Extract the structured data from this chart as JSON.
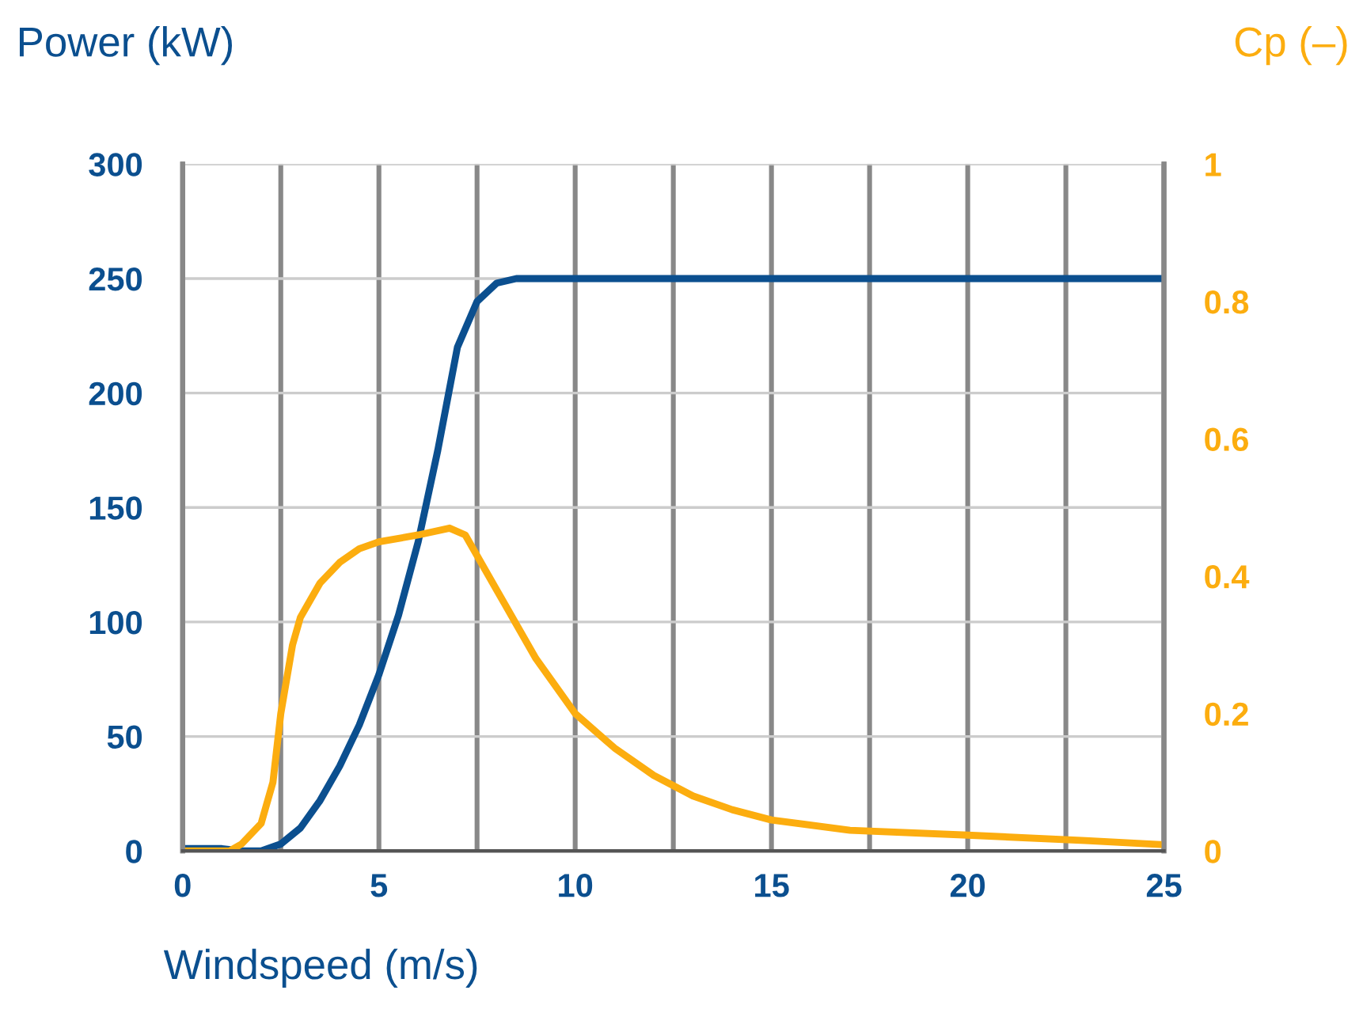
{
  "chart_data": {
    "type": "line",
    "xlabel": "Windspeed (m/s)",
    "ylabel": "Power (kW)",
    "y2label": "Cp (–)",
    "xlim": [
      0,
      25
    ],
    "xticks": [
      0,
      {
        "value": 2.5,
        "label": null
      },
      5,
      {
        "value": 7.5,
        "label": null
      },
      10,
      {
        "value": 12.5,
        "label": null
      },
      15,
      {
        "value": 17.5,
        "label": null
      },
      20,
      {
        "value": 22.5,
        "label": null
      },
      25
    ],
    "ylim": [
      0,
      300
    ],
    "yticks": [
      0,
      50,
      100,
      150,
      200,
      250,
      300
    ],
    "y2lim": [
      0,
      1
    ],
    "y2ticks": [
      0,
      0.2,
      0.4,
      0.6,
      0.8,
      1
    ],
    "grid": true,
    "legend": false,
    "marker": "none",
    "line_style": "solid",
    "series": [
      {
        "color": "#0b4f8f",
        "x": [
          0,
          1,
          1.5,
          2,
          2.5,
          3,
          3.5,
          4,
          4.5,
          5,
          5.5,
          6,
          6.5,
          7,
          7.5,
          8,
          8.5,
          9,
          10,
          15,
          20,
          25
        ],
        "values": [
          1,
          1,
          0,
          0,
          3,
          10,
          22,
          37,
          55,
          77,
          103,
          135,
          175,
          220,
          240,
          248,
          250,
          250,
          250,
          250,
          250,
          250
        ]
      },
      {
        "color": "#fcad0f",
        "axis": "y2",
        "x": [
          0,
          1,
          1.2,
          1.5,
          2,
          2.3,
          2.5,
          2.8,
          3,
          3.5,
          4,
          4.5,
          5,
          6,
          6.8,
          7.2,
          8,
          9,
          10,
          11,
          12,
          13,
          14,
          15,
          17,
          20,
          23,
          25
        ],
        "values": [
          0,
          0,
          0,
          0.01,
          0.04,
          0.1,
          0.2,
          0.3,
          0.34,
          0.39,
          0.42,
          0.44,
          0.45,
          0.46,
          0.47,
          0.46,
          0.38,
          0.28,
          0.2,
          0.15,
          0.11,
          0.08,
          0.06,
          0.045,
          0.03,
          0.023,
          0.015,
          0.009
        ]
      }
    ]
  }
}
